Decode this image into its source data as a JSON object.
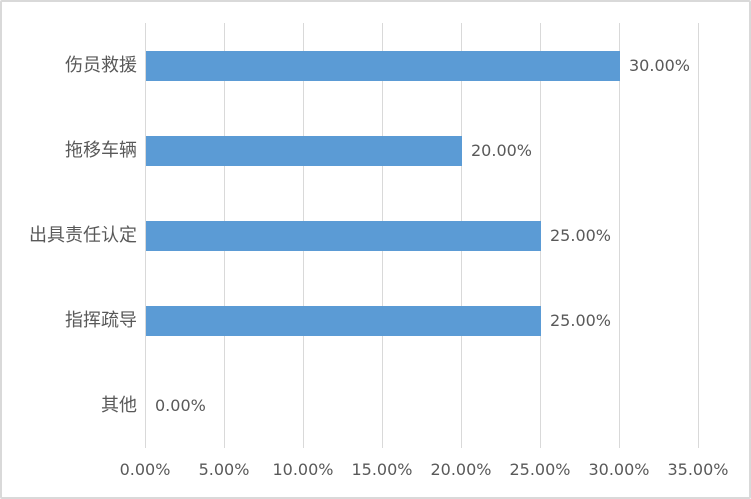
{
  "chart_data": {
    "type": "bar",
    "orientation": "horizontal",
    "title": "",
    "xlabel": "",
    "ylabel": "",
    "categories": [
      "伤员救援",
      "拖移车辆",
      "出具责任认定",
      "指挥疏导",
      "其他"
    ],
    "values": [
      30,
      20,
      25,
      25,
      0
    ],
    "data_labels": [
      "30.00%",
      "20.00%",
      "25.00%",
      "25.00%",
      "0.00%"
    ],
    "xlim": [
      0,
      35
    ],
    "x_tick_values": [
      0,
      5,
      10,
      15,
      20,
      25,
      30,
      35
    ],
    "x_tick_labels": [
      "0.00%",
      "5.00%",
      "10.00%",
      "15.00%",
      "20.00%",
      "25.00%",
      "30.00%",
      "35.00%"
    ],
    "grid": "vertical",
    "legend": "none",
    "colors": {
      "bar": "#5b9bd5",
      "gridline": "#d9d9d9",
      "text": "#595959",
      "frame_border": "#d9d9d9",
      "background": "#ffffff"
    }
  }
}
